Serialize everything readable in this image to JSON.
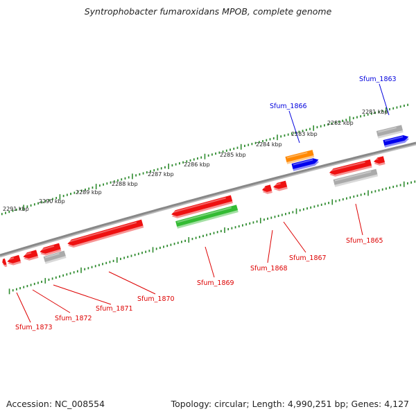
{
  "title": "Syntrophobacter fumaroxidans MPOB, complete genome",
  "footer": {
    "accession": "Accession: NC_008554",
    "summary": "Topology: circular; Length: 4,990,251 bp; Genes: 4,127"
  },
  "colors": {
    "backbone": "#888888",
    "ticks": "#2e8b2e",
    "forward_gene": "#0000dd",
    "reverse_gene": "#dd0000",
    "gene_red": "#ee1111",
    "gene_green": "#33bb33",
    "gene_orange": "#ff8800",
    "gene_blue": "#0000ee",
    "gene_gray": "#aaaaaa"
  },
  "ruler": {
    "labels": [
      "2281 kbp",
      "2282 kbp",
      "2283 kbp",
      "2284 kbp",
      "2285 kbp",
      "2286 kbp",
      "2287 kbp",
      "2288 kbp",
      "2289 kbp",
      "2290 kbp",
      "2291 kbp"
    ]
  },
  "genes": [
    {
      "name": "Sfum_1863",
      "strand": "forward"
    },
    {
      "name": "Sfum_1865",
      "strand": "reverse"
    },
    {
      "name": "Sfum_1866",
      "strand": "forward"
    },
    {
      "name": "Sfum_1867",
      "strand": "reverse"
    },
    {
      "name": "Sfum_1868",
      "strand": "reverse"
    },
    {
      "name": "Sfum_1869",
      "strand": "reverse"
    },
    {
      "name": "Sfum_1870",
      "strand": "reverse"
    },
    {
      "name": "Sfum_1871",
      "strand": "reverse"
    },
    {
      "name": "Sfum_1872",
      "strand": "reverse"
    },
    {
      "name": "Sfum_1873",
      "strand": "reverse"
    }
  ]
}
